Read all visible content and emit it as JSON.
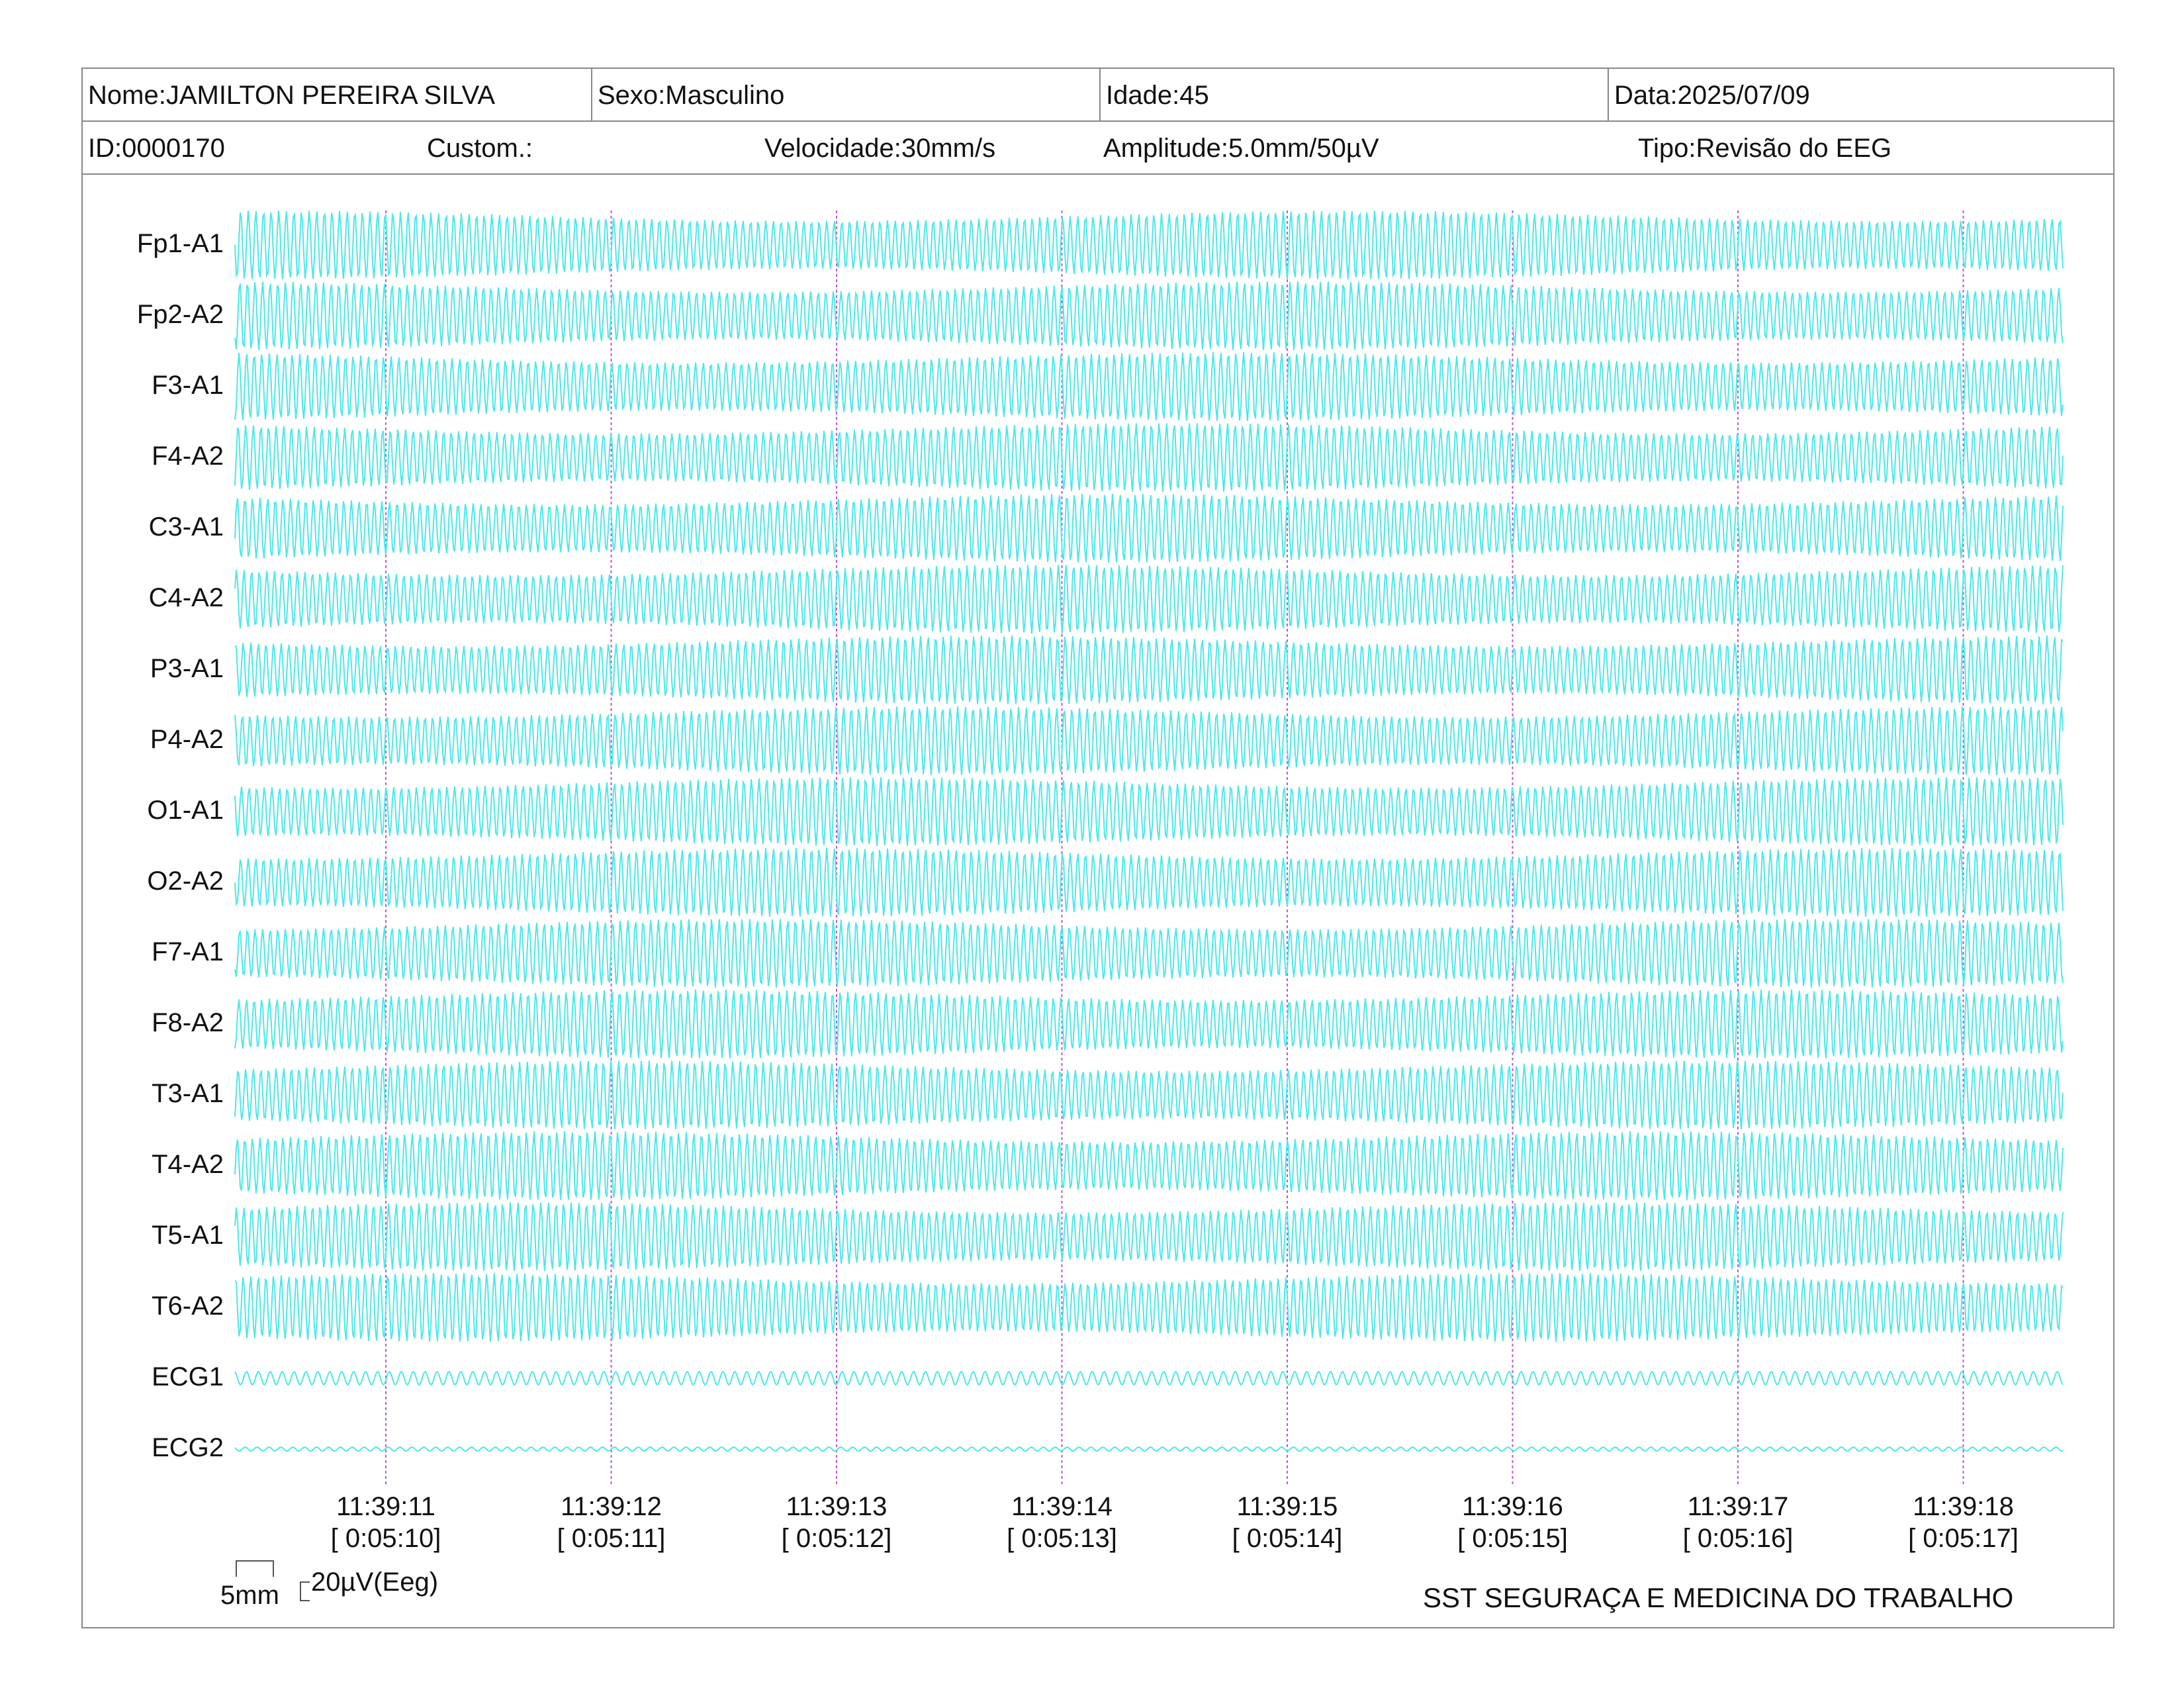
{
  "header": {
    "name": "Nome:JAMILTON PEREIRA SILVA",
    "sex": "Sexo:Masculino",
    "age": "Idade:45",
    "date": "Data:2025/07/09",
    "id": "ID:0000170",
    "custom": "Custom.:",
    "speed": "Velocidade:30mm/s",
    "amplitude": "Amplitude:5.0mm/50µV",
    "type": "Tipo:Revisão do EEG"
  },
  "channels": [
    "Fp1-A1",
    "Fp2-A2",
    "F3-A1",
    "F4-A2",
    "C3-A1",
    "C4-A2",
    "P3-A1",
    "P4-A2",
    "O1-A1",
    "O2-A2",
    "F7-A1",
    "F8-A2",
    "T3-A1",
    "T4-A2",
    "T5-A1",
    "T6-A2",
    "ECG1",
    "ECG2"
  ],
  "time_marks": [
    {
      "clock": "11:39:11",
      "elapsed": "[ 0:05:10]"
    },
    {
      "clock": "11:39:12",
      "elapsed": "[ 0:05:11]"
    },
    {
      "clock": "11:39:13",
      "elapsed": "[ 0:05:12]"
    },
    {
      "clock": "11:39:14",
      "elapsed": "[ 0:05:13]"
    },
    {
      "clock": "11:39:15",
      "elapsed": "[ 0:05:14]"
    },
    {
      "clock": "11:39:16",
      "elapsed": "[ 0:05:15]"
    },
    {
      "clock": "11:39:17",
      "elapsed": "[ 0:05:16]"
    },
    {
      "clock": "11:39:18",
      "elapsed": "[ 0:05:17]"
    }
  ],
  "scale": {
    "time_bar": "5mm",
    "amp_bar": "20µV(Eeg)"
  },
  "footer": {
    "brand": "SST SEGURAÇA E MEDICINA DO TRABALHO"
  },
  "colors": {
    "trace": "#4de8e8",
    "marker": "#c050e0",
    "border": "#888888"
  }
}
